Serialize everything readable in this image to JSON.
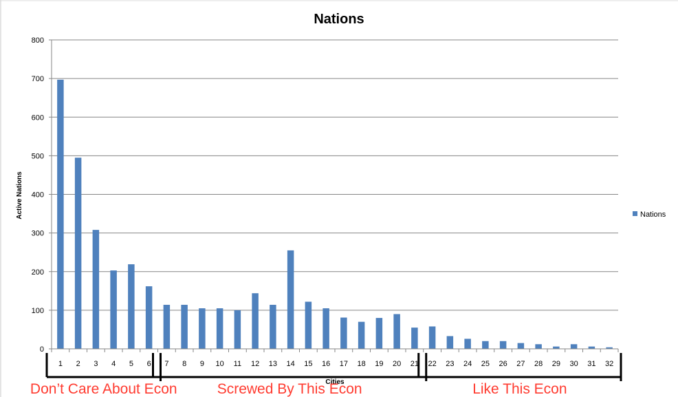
{
  "chart_data": {
    "type": "bar",
    "title": "Nations",
    "xlabel": "Cities",
    "ylabel": "Active Nations",
    "ylim": [
      0,
      800
    ],
    "yticks": [
      0,
      100,
      200,
      300,
      400,
      500,
      600,
      700,
      800
    ],
    "grid": true,
    "legend_position": "right",
    "categories": [
      "1",
      "2",
      "3",
      "4",
      "5",
      "6",
      "7",
      "8",
      "9",
      "10",
      "11",
      "12",
      "13",
      "14",
      "15",
      "16",
      "17",
      "18",
      "19",
      "20",
      "21",
      "22",
      "23",
      "24",
      "25",
      "26",
      "27",
      "28",
      "29",
      "30",
      "31",
      "32"
    ],
    "series": [
      {
        "name": "Nations",
        "color": "#4f81bd",
        "values": [
          697,
          495,
          308,
          203,
          219,
          162,
          114,
          114,
          105,
          105,
          100,
          144,
          114,
          255,
          122,
          105,
          81,
          70,
          80,
          90,
          55,
          58,
          33,
          26,
          20,
          20,
          15,
          12,
          6,
          12,
          6,
          4
        ]
      }
    ],
    "annotations": [
      {
        "label": "Don’t Care About Econ",
        "from_category": "1",
        "to_category": "6",
        "color": "#ff3b30"
      },
      {
        "label": "Screwed By This Econ",
        "from_category": "7",
        "to_category": "21",
        "color": "#ff3b30"
      },
      {
        "label": "Like This Econ",
        "from_category": "22",
        "to_category": "32",
        "color": "#ff3b30"
      }
    ]
  }
}
